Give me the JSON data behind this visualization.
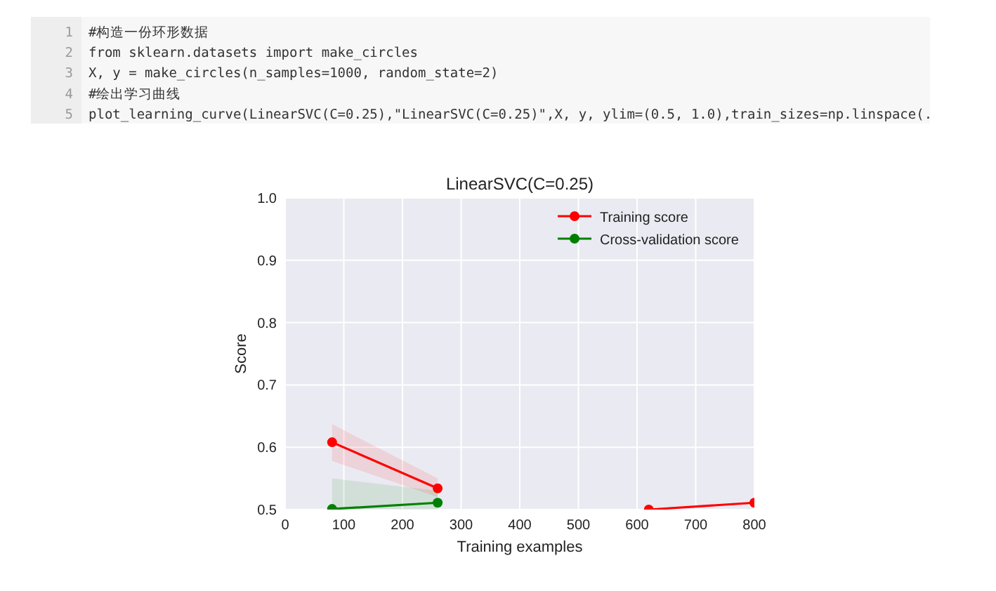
{
  "chart_data": {
    "type": "line",
    "title": "LinearSVC(C=0.25)",
    "xlabel": "Training examples",
    "ylabel": "Score",
    "annotations": [
      "1\t#构造一份环形数据",
      "2\tfrom sklearn.datasets import make_circles",
      "3\tX, y = make_circles(n_samples=1000, random_state=2)",
      "4\t#绘出学习曲线",
      "5\tplot_learning_curve(LinearSVC(C=0.25),\"LinearSVC(C=0.25)\",X, y, ylim=(0.5, 1.0),train_sizes=np.linspace(."
    ],
    "x": [
      80,
      260,
      440,
      620,
      800
    ],
    "series": [
      {
        "name": "Training score",
        "color": "#ff0000",
        "values": [
          0.608,
          0.534,
          null,
          0.5,
          0.511
        ],
        "lower": [
          0.578,
          0.52,
          null,
          null,
          null
        ],
        "upper": [
          0.637,
          0.55,
          null,
          null,
          null
        ]
      },
      {
        "name": "Cross-validation score",
        "color": "#008000",
        "values": [
          0.501,
          0.511,
          null,
          null,
          null
        ],
        "lower": [
          0.5,
          0.5,
          null,
          null,
          null
        ],
        "upper": [
          0.55,
          0.53,
          null,
          null,
          null
        ]
      }
    ],
    "xlim": [
      0,
      800
    ],
    "ylim": [
      0.5,
      1.0
    ],
    "xticks": [
      0,
      100,
      200,
      300,
      400,
      500,
      600,
      700,
      800
    ],
    "yticks": [
      0.5,
      0.6,
      0.7,
      0.8,
      0.9,
      {
        "value": 1,
        "label": "1.0"
      }
    ],
    "grid": true,
    "legend": "top right",
    "marker": "circle",
    "line_style": "solid"
  }
}
